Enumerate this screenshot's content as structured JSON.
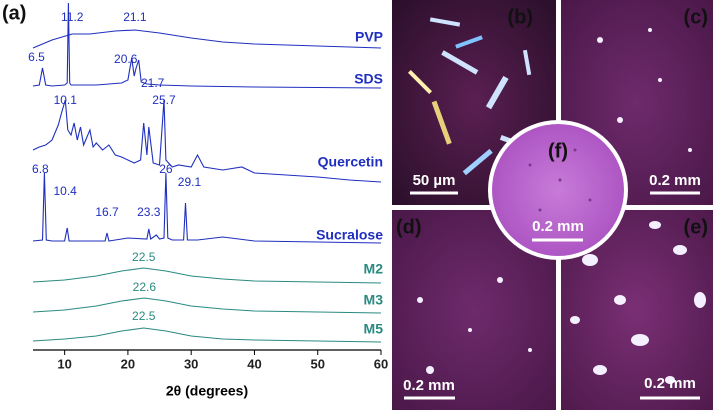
{
  "chart_data": {
    "type": "line",
    "panel_label": "(a)",
    "xlabel": "2θ (degrees)",
    "xlim": [
      5,
      60
    ],
    "xticks": [
      10,
      20,
      30,
      40,
      50,
      60
    ],
    "series": [
      {
        "name": "PVP",
        "color": "#1f2fbf",
        "peaks": [
          11.2,
          21.1
        ],
        "x": [
          5,
          8,
          11.2,
          14,
          18,
          21.1,
          25,
          30,
          35,
          40,
          50,
          60
        ],
        "values": [
          0,
          8,
          14,
          14,
          17,
          18,
          15,
          10,
          6,
          4,
          2,
          0
        ]
      },
      {
        "name": "SDS",
        "color": "#1f2fbf",
        "peaks": [
          6.5,
          20.6,
          21.7
        ],
        "x": [
          5,
          6,
          6.5,
          7,
          8,
          10,
          10.4,
          10.6,
          10.8,
          11,
          15,
          19,
          20,
          20.6,
          21,
          21.3,
          21.7,
          22.1,
          23,
          25,
          30,
          40,
          60
        ],
        "values": [
          2,
          3,
          20,
          3,
          2,
          3,
          5,
          85,
          5,
          3,
          3,
          5,
          8,
          30,
          12,
          20,
          28,
          6,
          4,
          3,
          2,
          1,
          0
        ]
      },
      {
        "name": "Quercetin",
        "color": "#1f2fbf",
        "peaks": [
          10.1,
          25.7
        ],
        "x": [
          5,
          6,
          7,
          8,
          9,
          9.5,
          10.1,
          10.5,
          11,
          11.5,
          12,
          12.5,
          13,
          14,
          14.5,
          15,
          16,
          17,
          18,
          19,
          20,
          21,
          22,
          22.5,
          23,
          23.3,
          24,
          25,
          25.7,
          26,
          27,
          28,
          30,
          31,
          32,
          35,
          38,
          40,
          45,
          50,
          55,
          60
        ],
        "values": [
          35,
          38,
          40,
          45,
          60,
          72,
          85,
          55,
          50,
          62,
          45,
          58,
          40,
          55,
          38,
          42,
          35,
          40,
          30,
          28,
          25,
          22,
          25,
          62,
          30,
          58,
          22,
          20,
          85,
          25,
          18,
          20,
          18,
          30,
          18,
          15,
          18,
          12,
          10,
          8,
          5,
          3
        ]
      },
      {
        "name": "Sucralose",
        "color": "#1f2fbf",
        "peaks": [
          6.8,
          10.4,
          16.7,
          23.3,
          26.0,
          29.1
        ],
        "x": [
          5,
          6.5,
          6.8,
          7.1,
          8,
          10,
          10.4,
          10.7,
          12,
          16.4,
          16.7,
          17,
          18,
          20,
          23,
          23.3,
          23.6,
          24.5,
          25,
          25.7,
          26,
          26.3,
          27,
          28.8,
          29.1,
          29.4,
          31,
          35,
          40,
          50,
          60
        ],
        "values": [
          2,
          3,
          70,
          3,
          2,
          2,
          15,
          2,
          2,
          2,
          10,
          2,
          3,
          5,
          4,
          14,
          4,
          8,
          4,
          5,
          70,
          5,
          3,
          3,
          40,
          3,
          3,
          6,
          2,
          1,
          0
        ]
      },
      {
        "name": "M2",
        "color": "#2a8a80",
        "peaks": [
          22.5
        ],
        "x": [
          5,
          10,
          15,
          19,
          22.5,
          26,
          30,
          35,
          40,
          50,
          60
        ],
        "values": [
          1,
          3,
          7,
          12,
          15,
          12,
          7,
          4,
          2,
          1,
          0
        ]
      },
      {
        "name": "M3",
        "color": "#2a8a80",
        "peaks": [
          22.6
        ],
        "x": [
          5,
          10,
          15,
          19,
          22.6,
          26,
          30,
          35,
          40,
          50,
          60
        ],
        "values": [
          1,
          3,
          7,
          12,
          15,
          12,
          7,
          4,
          2,
          1,
          0
        ]
      },
      {
        "name": "M5",
        "color": "#2a8a80",
        "peaks": [
          22.5
        ],
        "x": [
          5,
          10,
          15,
          19,
          22.5,
          26,
          30,
          35,
          40,
          50,
          60
        ],
        "values": [
          1,
          3,
          6,
          11,
          14,
          11,
          6,
          3,
          2,
          1,
          0
        ]
      }
    ]
  },
  "micrographs": [
    {
      "label": "(b)",
      "scale_bar": "50 µm"
    },
    {
      "label": "(c)",
      "scale_bar": "0.2 mm"
    },
    {
      "label": "(d)",
      "scale_bar": "0.2 mm"
    },
    {
      "label": "(e)",
      "scale_bar": "0.2 mm"
    },
    {
      "label": "(f)",
      "scale_bar": "0.2 mm"
    }
  ]
}
